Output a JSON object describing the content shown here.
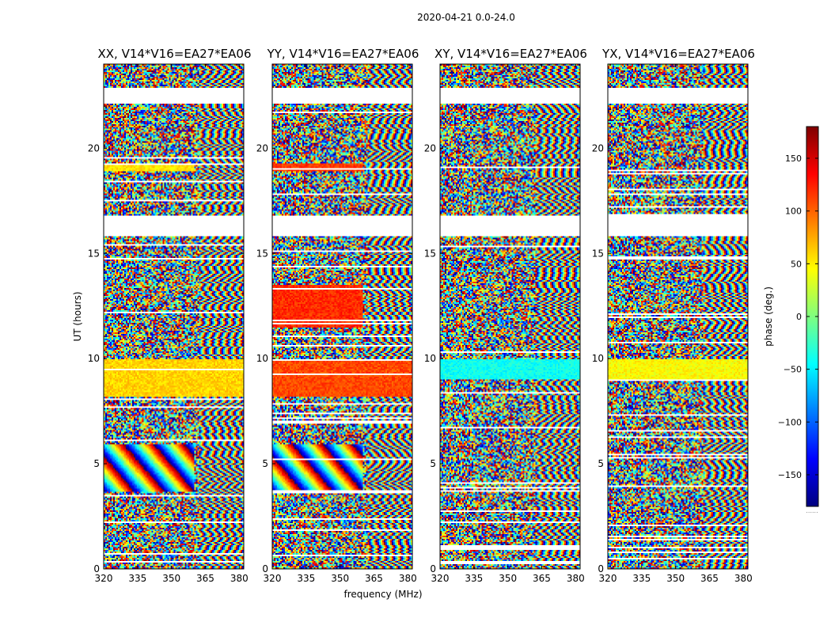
{
  "figure": {
    "suptitle": "2020-04-21 0.0-24.0",
    "ylabel": "UT (hours)",
    "xlabel": "frequency (MHz)",
    "colorbar": {
      "label": "phase (deg.)",
      "range": [
        -180,
        180
      ],
      "ticks": [
        150,
        100,
        50,
        0,
        -50,
        -100,
        -150
      ],
      "colors": [
        "#00007f",
        "#0000ff",
        "#007fff",
        "#00ffff",
        "#7fff7f",
        "#ffff00",
        "#ff7f00",
        "#ff0000",
        "#7f0000"
      ],
      "footnote": "......"
    }
  },
  "chart_data": [
    {
      "type": "heatmap",
      "title": "XX, V14*V16=EA27*EA06",
      "xlabel": "frequency (MHz)",
      "ylabel": "UT (hours)",
      "xlim": [
        320,
        382
      ],
      "ylim": [
        0,
        24
      ],
      "xticks": [
        320,
        335,
        350,
        365,
        380
      ],
      "yticks": [
        0,
        5,
        10,
        15,
        20
      ],
      "value_range": [
        -180,
        180
      ],
      "blank_intervals": [
        [
          22.15,
          22.9
        ],
        [
          15.8,
          16.8
        ]
      ],
      "coherent_bands": [
        {
          "ut": [
            8.2,
            10.0
          ],
          "freq": [
            320,
            382
          ],
          "phase_deg": 60
        },
        {
          "ut": [
            18.9,
            19.3
          ],
          "freq": [
            320,
            360
          ],
          "phase_deg": 55
        }
      ],
      "fringe_bands": [
        {
          "ut": [
            3.7,
            5.9
          ],
          "freq": [
            320,
            360
          ],
          "phase_wraps": 3
        }
      ]
    },
    {
      "type": "heatmap",
      "title": "YY, V14*V16=EA27*EA06",
      "xlabel": "frequency (MHz)",
      "ylabel": "UT (hours)",
      "xlim": [
        320,
        382
      ],
      "ylim": [
        0,
        24
      ],
      "xticks": [
        320,
        335,
        350,
        365,
        380
      ],
      "yticks": [
        0,
        5,
        10,
        15,
        20
      ],
      "value_range": [
        -180,
        180
      ],
      "blank_intervals": [
        [
          22.15,
          22.9
        ],
        [
          15.8,
          16.8
        ]
      ],
      "coherent_bands": [
        {
          "ut": [
            8.2,
            10.0
          ],
          "freq": [
            320,
            382
          ],
          "phase_deg": 110
        },
        {
          "ut": [
            18.9,
            19.3
          ],
          "freq": [
            320,
            360
          ],
          "phase_deg": 115
        },
        {
          "ut": [
            11.5,
            13.5
          ],
          "freq": [
            320,
            360
          ],
          "phase_deg": 120
        }
      ],
      "fringe_bands": [
        {
          "ut": [
            3.7,
            5.9
          ],
          "freq": [
            320,
            360
          ],
          "phase_wraps": 3
        }
      ]
    },
    {
      "type": "heatmap",
      "title": "XY, V14*V16=EA27*EA06",
      "xlabel": "frequency (MHz)",
      "ylabel": "UT (hours)",
      "xlim": [
        320,
        382
      ],
      "ylim": [
        0,
        24
      ],
      "xticks": [
        320,
        335,
        350,
        365,
        380
      ],
      "yticks": [
        0,
        5,
        10,
        15,
        20
      ],
      "value_range": [
        -180,
        180
      ],
      "blank_intervals": [
        [
          22.15,
          22.9
        ],
        [
          15.8,
          16.8
        ]
      ],
      "coherent_bands": [
        {
          "ut": [
            9.0,
            10.0
          ],
          "freq": [
            320,
            382
          ],
          "phase_deg": -40
        }
      ],
      "fringe_bands": []
    },
    {
      "type": "heatmap",
      "title": "YX, V14*V16=EA27*EA06",
      "xlabel": "frequency (MHz)",
      "ylabel": "UT (hours)",
      "xlim": [
        320,
        382
      ],
      "ylim": [
        0,
        24
      ],
      "xticks": [
        320,
        335,
        350,
        365,
        380
      ],
      "yticks": [
        0,
        5,
        10,
        15,
        20
      ],
      "value_range": [
        -180,
        180
      ],
      "blank_intervals": [
        [
          22.15,
          22.9
        ],
        [
          15.8,
          16.8
        ]
      ],
      "coherent_bands": [
        {
          "ut": [
            9.0,
            10.0
          ],
          "freq": [
            320,
            382
          ],
          "phase_deg": 45
        }
      ],
      "fringe_bands": []
    }
  ]
}
